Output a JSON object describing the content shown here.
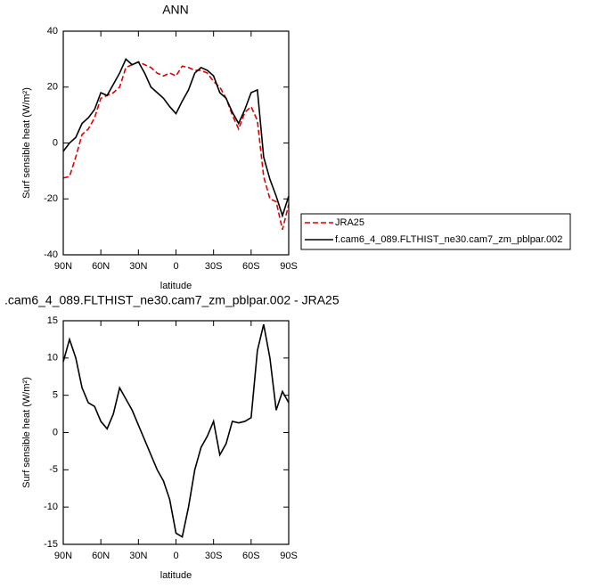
{
  "chart_data": [
    {
      "type": "line",
      "title": "ANN",
      "x_label": "latitude",
      "y_label": "Surf sensible heat (W/m²)",
      "x": [
        90,
        85,
        80,
        75,
        70,
        65,
        60,
        55,
        50,
        45,
        40,
        35,
        30,
        25,
        20,
        15,
        10,
        5,
        0,
        -5,
        -10,
        -15,
        -20,
        -25,
        -30,
        -35,
        -40,
        -45,
        -50,
        -55,
        -60,
        -65,
        -70,
        -75,
        -80,
        -85,
        -90
      ],
      "series": [
        {
          "name": "JRA25",
          "color": "#e00000",
          "line_style": "dashed",
          "values": [
            -12.5,
            -12,
            -5,
            3,
            5,
            9,
            16,
            17,
            18,
            20,
            27,
            28,
            29,
            28,
            27,
            25,
            24,
            25,
            24,
            27.5,
            27,
            26,
            26,
            25,
            22,
            20,
            16,
            10,
            5,
            11,
            13,
            8,
            -12,
            -20,
            -21,
            -31,
            -22
          ]
        },
        {
          "name": "f.cam6_4_089.FLTHIST_ne30.cam7_zm_pblpar.002",
          "color": "#000000",
          "line_style": "solid",
          "values": [
            -3,
            0,
            2,
            7,
            9,
            12,
            18,
            17,
            21,
            25,
            30,
            28,
            29,
            25,
            20,
            18,
            16,
            13,
            10.5,
            15,
            19,
            25,
            27,
            26,
            24,
            18,
            16,
            11,
            7,
            12,
            18,
            19,
            -5,
            -13,
            -19,
            -26,
            -19
          ]
        }
      ],
      "xlim": [
        90,
        -90
      ],
      "xticks": [
        {
          "value": 90,
          "label": "90N"
        },
        {
          "value": 60,
          "label": "60N"
        },
        {
          "value": 30,
          "label": "30N"
        },
        0,
        {
          "value": -30,
          "label": "30S"
        },
        {
          "value": -60,
          "label": "60S"
        },
        {
          "value": -90,
          "label": "90S"
        }
      ],
      "ylim": [
        -40,
        40
      ],
      "yticks": [
        -40,
        -20,
        0,
        20,
        40
      ],
      "legend": "outside-right"
    },
    {
      "type": "line",
      "title": ".cam6_4_089.FLTHIST_ne30.cam7_zm_pblpar.002 - JRA25",
      "x_label": "latitude",
      "y_label": "Surf sensible heat (W/m²)",
      "x": [
        90,
        85,
        80,
        75,
        70,
        65,
        60,
        55,
        50,
        45,
        40,
        35,
        30,
        25,
        20,
        15,
        10,
        5,
        0,
        -5,
        -10,
        -15,
        -20,
        -25,
        -30,
        -35,
        -40,
        -45,
        -50,
        -55,
        -60,
        -65,
        -70,
        -75,
        -80,
        -85,
        -90
      ],
      "series": [
        {
          "color": "#000000",
          "line_style": "solid",
          "values": [
            9.5,
            12.5,
            10,
            6,
            4,
            3.5,
            1.5,
            0.5,
            2.5,
            6,
            4.5,
            3,
            1,
            -1,
            -3,
            -5,
            -6.5,
            -9,
            -13.5,
            -14,
            -10,
            -5,
            -2,
            -0.5,
            1.5,
            -3,
            -1.5,
            1.5,
            1.3,
            1.5,
            2,
            11,
            14.5,
            10,
            3,
            5.5,
            4
          ]
        }
      ],
      "xlim": [
        90,
        -90
      ],
      "xticks": [
        {
          "value": 90,
          "label": "90N"
        },
        {
          "value": 60,
          "label": "60N"
        },
        {
          "value": 30,
          "label": "30N"
        },
        0,
        {
          "value": -30,
          "label": "30S"
        },
        {
          "value": -60,
          "label": "60S"
        },
        {
          "value": -90,
          "label": "90S"
        }
      ],
      "ylim": [
        -15,
        15
      ],
      "yticks": [
        -15,
        -10,
        -5,
        0,
        5,
        10,
        15
      ]
    }
  ]
}
